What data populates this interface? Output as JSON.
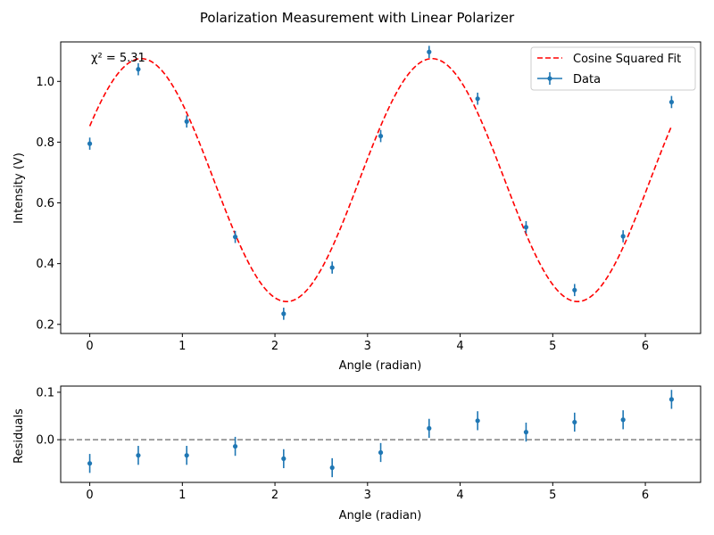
{
  "figure": {
    "title": "Polarization Measurement with Linear Polarizer"
  },
  "chart_data": [
    {
      "type": "scatter",
      "xlabel": "Angle (radian)",
      "ylabel": "Intensity (V)",
      "xlim": [
        -0.314,
        6.597
      ],
      "ylim": [
        0.17,
        1.13
      ],
      "xticks": [
        0,
        1,
        2,
        3,
        4,
        5,
        6
      ],
      "yticks": [
        0.2,
        0.4,
        0.6,
        0.8,
        1.0
      ],
      "ytick_labels": [
        "0.2",
        "0.4",
        "0.6",
        "0.8",
        "1.0"
      ],
      "annotation": "χ² = 5.31",
      "legend_position": "top-right",
      "grid": false,
      "series": [
        {
          "name": "Data",
          "kind": "errorbar",
          "color": "#1f77b4",
          "x": [
            0,
            0.524,
            1.047,
            1.571,
            2.094,
            2.618,
            3.142,
            3.665,
            4.189,
            4.712,
            5.236,
            5.76,
            6.283
          ],
          "y": [
            0.795,
            1.04,
            0.868,
            0.488,
            0.235,
            0.387,
            0.82,
            1.097,
            0.943,
            0.52,
            0.313,
            0.49,
            0.932
          ],
          "yerr": [
            0.02,
            0.02,
            0.02,
            0.02,
            0.02,
            0.02,
            0.02,
            0.02,
            0.02,
            0.02,
            0.02,
            0.02,
            0.02
          ]
        },
        {
          "name": "Cosine Squared Fit",
          "kind": "line",
          "style": "dashed",
          "color": "#ff0000",
          "model": {
            "amplitude": 0.8,
            "offset": 0.275,
            "phase": 0.555
          }
        }
      ]
    },
    {
      "type": "scatter",
      "xlabel": "Angle (radian)",
      "ylabel": "Residuals",
      "xlim": [
        -0.314,
        6.597
      ],
      "ylim": [
        -0.09,
        0.113
      ],
      "xticks": [
        0,
        1,
        2,
        3,
        4,
        5,
        6
      ],
      "yticks": [
        0.0,
        0.1
      ],
      "ytick_labels": [
        "0.0",
        "0.1"
      ],
      "reference_line": {
        "y": 0,
        "style": "dashed",
        "color": "#808080"
      },
      "series": [
        {
          "name": "Residuals",
          "kind": "errorbar",
          "color": "#1f77b4",
          "x": [
            0,
            0.524,
            1.047,
            1.571,
            2.094,
            2.618,
            3.142,
            3.665,
            4.189,
            4.712,
            5.236,
            5.76,
            6.283
          ],
          "y": [
            -0.05,
            -0.033,
            -0.033,
            -0.014,
            -0.04,
            -0.059,
            -0.027,
            0.024,
            0.04,
            0.016,
            0.037,
            0.042,
            0.085
          ],
          "yerr": [
            0.02,
            0.02,
            0.02,
            0.02,
            0.02,
            0.02,
            0.02,
            0.02,
            0.02,
            0.02,
            0.02,
            0.02,
            0.02
          ]
        }
      ]
    }
  ]
}
